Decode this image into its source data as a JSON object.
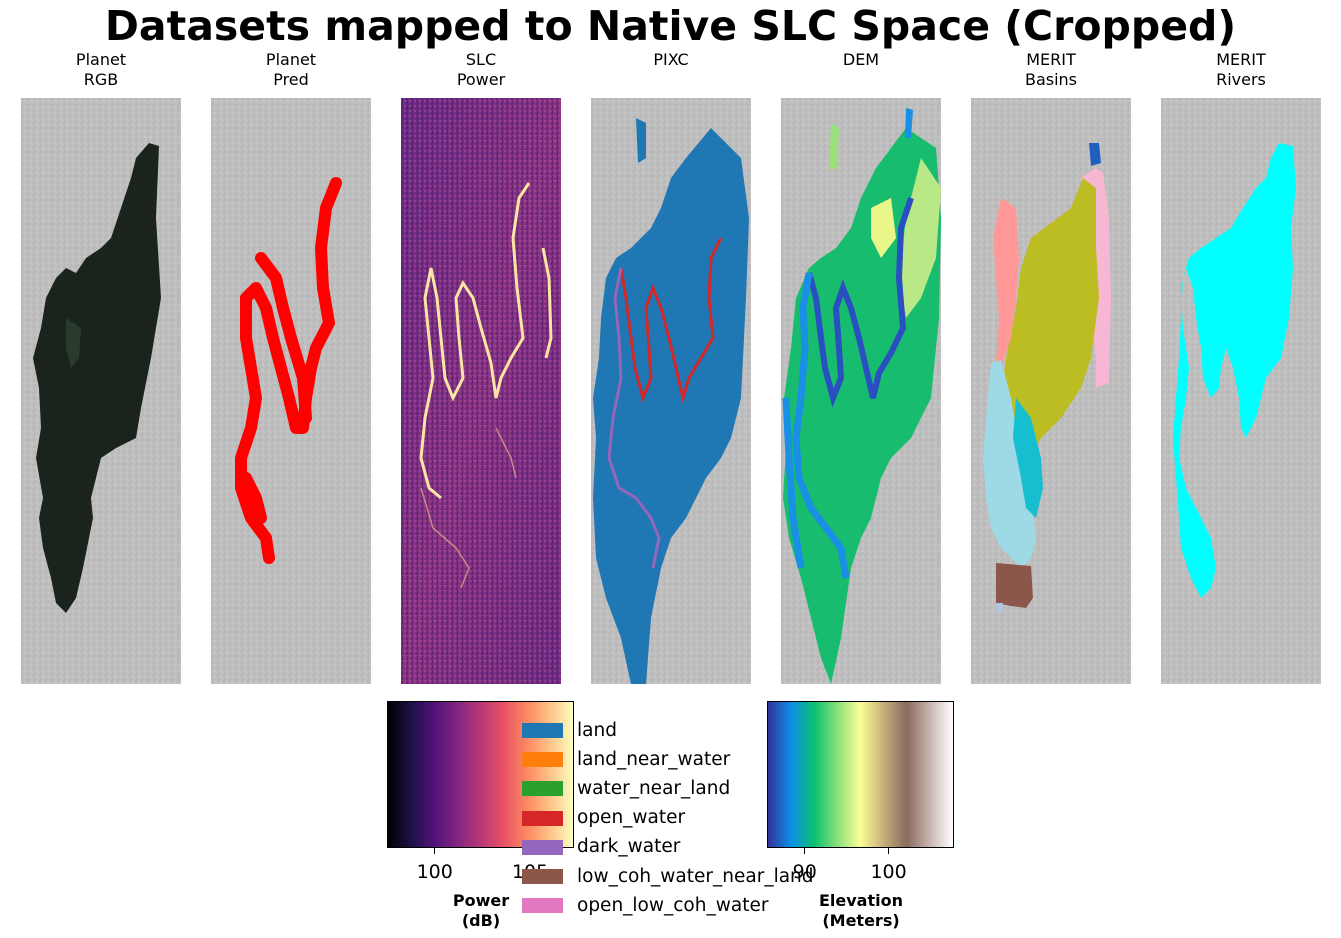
{
  "title": "Datasets mapped to Native SLC Space (Cropped)",
  "panels": [
    {
      "id": "planet-rgb",
      "label": "Planet\nRGB",
      "overlay": "#1b241c",
      "background": "#bdbdbd"
    },
    {
      "id": "planet-pred",
      "label": "Planet\nPred",
      "overlay": "#ff0000",
      "background": "#bdbdbd"
    },
    {
      "id": "slc-power",
      "label": "SLC\nPower",
      "overlay": "#fde5a3",
      "background": "#7b2a84"
    },
    {
      "id": "pixc",
      "label": "PIXC",
      "overlay": "#1f77b4",
      "background": "#bdbdbd"
    },
    {
      "id": "dem",
      "label": "DEM",
      "overlay": "#2a8fd9",
      "background": "#bdbdbd"
    },
    {
      "id": "merit-basins",
      "label": "MERIT\nBasins",
      "overlay": "#bcbd22",
      "background": "#bdbdbd"
    },
    {
      "id": "merit-rivers",
      "label": "MERIT\nRivers",
      "overlay": "#00ffff",
      "background": "#bdbdbd"
    }
  ],
  "power_colorbar": {
    "label": "Power\n(dB)",
    "ticks": [
      {
        "value": 100,
        "label": "100"
      },
      {
        "value": 105,
        "label": "105"
      }
    ],
    "range": [
      97.5,
      107.3
    ],
    "colormap": "magma"
  },
  "elevation_colorbar": {
    "label": "Elevation\n(Meters)",
    "ticks": [
      {
        "value": 90,
        "label": "90"
      },
      {
        "value": 100,
        "label": "100"
      }
    ],
    "range": [
      85.5,
      107.8
    ],
    "colormap": "terrain"
  },
  "legend": [
    {
      "label": "land",
      "color": "#1f77b4"
    },
    {
      "label": "land_near_water",
      "color": "#ff7f0e"
    },
    {
      "label": "water_near_land",
      "color": "#2ca02c"
    },
    {
      "label": "open_water",
      "color": "#d62728"
    },
    {
      "label": "dark_water",
      "color": "#9467bd"
    },
    {
      "label": "low_coh_water_near_land",
      "color": "#8c564b"
    },
    {
      "label": "open_low_coh_water",
      "color": "#e377c2"
    }
  ],
  "chart_data": {
    "type": "heatmap",
    "title": "Datasets mapped to Native SLC Space (Cropped)",
    "panels": [
      "Planet RGB",
      "Planet Pred",
      "SLC Power",
      "PIXC",
      "DEM",
      "MERIT Basins",
      "MERIT Rivers"
    ],
    "colorbars": [
      {
        "label": "Power (dB)",
        "ticks": [
          100,
          105
        ],
        "colormap": "magma"
      },
      {
        "label": "Elevation (Meters)",
        "ticks": [
          90,
          100
        ],
        "colormap": "terrain"
      }
    ],
    "legend": [
      "land",
      "land_near_water",
      "water_near_land",
      "open_water",
      "dark_water",
      "low_coh_water_near_land",
      "open_low_coh_water"
    ]
  }
}
